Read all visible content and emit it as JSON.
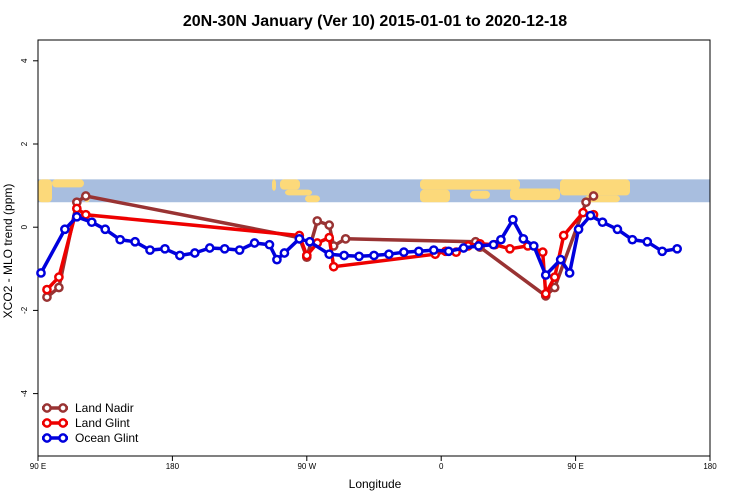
{
  "chart_data": {
    "type": "line",
    "title": "20N-30N January (Ver 10)   2015-01-01 to 2020-12-18",
    "xlabel": "Longitude",
    "ylabel": "XCO2 - MLO trend (ppm)",
    "xlim": [
      90,
      540
    ],
    "ylim": [
      -5.5,
      4.5
    ],
    "x_ticks": [
      {
        "value": 90,
        "label": "90 E"
      },
      {
        "value": 180,
        "label": "180"
      },
      {
        "value": 270,
        "label": "90 W"
      },
      {
        "value": 360,
        "label": "0"
      },
      {
        "value": 450,
        "label": "90 E"
      },
      {
        "value": 540,
        "label": "180"
      }
    ],
    "y_ticks": [
      {
        "value": -4,
        "label": "-4"
      },
      {
        "value": -2,
        "label": "-2"
      },
      {
        "value": 0,
        "label": "0"
      },
      {
        "value": 2,
        "label": "2"
      },
      {
        "value": 4,
        "label": "4"
      }
    ],
    "map_strip": {
      "y_top": 1.15,
      "y_bottom": 0.6,
      "ocean_color": "#a8bedf",
      "land_color": "#fcd97a"
    },
    "legend": {
      "position": "bottom-left"
    },
    "series": [
      {
        "name": "Land Nadir",
        "color": "#993333",
        "points": [
          [
            96,
            -1.68
          ],
          [
            104,
            -1.45
          ],
          [
            116,
            0.6
          ],
          [
            122,
            0.75
          ],
          [
            265,
            -0.25
          ],
          [
            270,
            -0.72
          ],
          [
            277,
            0.15
          ],
          [
            285,
            0.05
          ],
          [
            288,
            -0.45
          ],
          [
            296,
            -0.28
          ],
          [
            383,
            -0.35
          ],
          [
            386,
            -0.48
          ],
          [
            430,
            -1.65
          ],
          [
            436,
            -1.45
          ],
          [
            457,
            0.6
          ],
          [
            462,
            0.75
          ]
        ]
      },
      {
        "name": "Land Glint",
        "color": "#ee0000",
        "points": [
          [
            96,
            -1.5
          ],
          [
            104,
            -1.2
          ],
          [
            116,
            0.45
          ],
          [
            122,
            0.3
          ],
          [
            265,
            -0.2
          ],
          [
            270,
            -0.68
          ],
          [
            277,
            -0.38
          ],
          [
            285,
            -0.25
          ],
          [
            288,
            -0.95
          ],
          [
            356,
            -0.65
          ],
          [
            363,
            -0.58
          ],
          [
            370,
            -0.6
          ],
          [
            378,
            -0.45
          ],
          [
            386,
            -0.4
          ],
          [
            396,
            -0.42
          ],
          [
            406,
            -0.52
          ],
          [
            418,
            -0.45
          ],
          [
            428,
            -0.6
          ],
          [
            430,
            -1.6
          ],
          [
            436,
            -1.2
          ],
          [
            442,
            -0.2
          ],
          [
            455,
            0.35
          ],
          [
            462,
            0.3
          ]
        ]
      },
      {
        "name": "Ocean Glint",
        "color": "#0000dd",
        "points": [
          [
            92,
            -1.1
          ],
          [
            108,
            -0.05
          ],
          [
            116,
            0.25
          ],
          [
            126,
            0.12
          ],
          [
            135,
            -0.05
          ],
          [
            145,
            -0.3
          ],
          [
            155,
            -0.35
          ],
          [
            165,
            -0.55
          ],
          [
            175,
            -0.52
          ],
          [
            185,
            -0.68
          ],
          [
            195,
            -0.62
          ],
          [
            205,
            -0.5
          ],
          [
            215,
            -0.52
          ],
          [
            225,
            -0.55
          ],
          [
            235,
            -0.38
          ],
          [
            245,
            -0.42
          ],
          [
            250,
            -0.78
          ],
          [
            255,
            -0.62
          ],
          [
            265,
            -0.28
          ],
          [
            272,
            -0.35
          ],
          [
            285,
            -0.65
          ],
          [
            295,
            -0.68
          ],
          [
            305,
            -0.7
          ],
          [
            315,
            -0.68
          ],
          [
            325,
            -0.65
          ],
          [
            335,
            -0.6
          ],
          [
            345,
            -0.58
          ],
          [
            355,
            -0.55
          ],
          [
            365,
            -0.58
          ],
          [
            375,
            -0.5
          ],
          [
            385,
            -0.45
          ],
          [
            395,
            -0.42
          ],
          [
            400,
            -0.3
          ],
          [
            408,
            0.18
          ],
          [
            415,
            -0.28
          ],
          [
            422,
            -0.45
          ],
          [
            430,
            -1.15
          ],
          [
            440,
            -0.78
          ],
          [
            446,
            -1.1
          ],
          [
            452,
            -0.05
          ],
          [
            460,
            0.28
          ],
          [
            468,
            0.12
          ],
          [
            478,
            -0.05
          ],
          [
            488,
            -0.3
          ],
          [
            498,
            -0.35
          ],
          [
            508,
            -0.58
          ],
          [
            518,
            -0.52
          ]
        ]
      }
    ]
  }
}
